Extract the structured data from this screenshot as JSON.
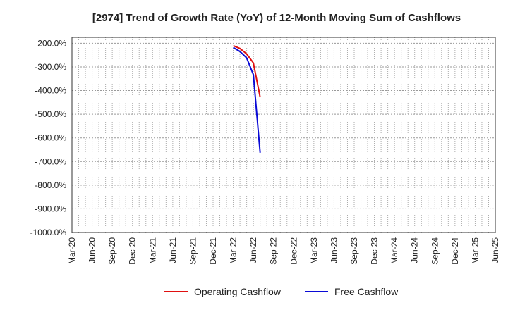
{
  "chart_data": {
    "type": "line",
    "title": "[2974]  Trend of Growth Rate (YoY) of 12-Month Moving Sum of Cashflows",
    "xlabel": "",
    "ylabel": "",
    "x_ticks": [
      "Mar-20",
      "Jun-20",
      "Sep-20",
      "Dec-20",
      "Mar-21",
      "Jun-21",
      "Sep-21",
      "Dec-21",
      "Mar-22",
      "Jun-22",
      "Sep-22",
      "Dec-22",
      "Mar-23",
      "Jun-23",
      "Sep-23",
      "Dec-23",
      "Mar-24",
      "Jun-24",
      "Sep-24",
      "Dec-24",
      "Mar-25",
      "Jun-25"
    ],
    "y_ticks": [
      "-200.0%",
      "-300.0%",
      "-400.0%",
      "-500.0%",
      "-600.0%",
      "-700.0%",
      "-800.0%",
      "-900.0%",
      "-1000.0%"
    ],
    "ylim": [
      -1000,
      -175
    ],
    "grid": true,
    "legend_position": "bottom",
    "series": [
      {
        "name": "Operating Cashflow",
        "color": "#e01010",
        "points": [
          {
            "x": "Mar-22",
            "y": -210
          },
          {
            "x": "Apr-22",
            "y": -222
          },
          {
            "x": "May-22",
            "y": -245
          },
          {
            "x": "Jun-22",
            "y": -283
          },
          {
            "x": "Jul-22",
            "y": -428
          }
        ]
      },
      {
        "name": "Free Cashflow",
        "color": "#0a0ad6",
        "points": [
          {
            "x": "Mar-22",
            "y": -218
          },
          {
            "x": "Apr-22",
            "y": -235
          },
          {
            "x": "May-22",
            "y": -262
          },
          {
            "x": "Jun-22",
            "y": -333
          },
          {
            "x": "Jul-22",
            "y": -663
          }
        ]
      }
    ]
  }
}
